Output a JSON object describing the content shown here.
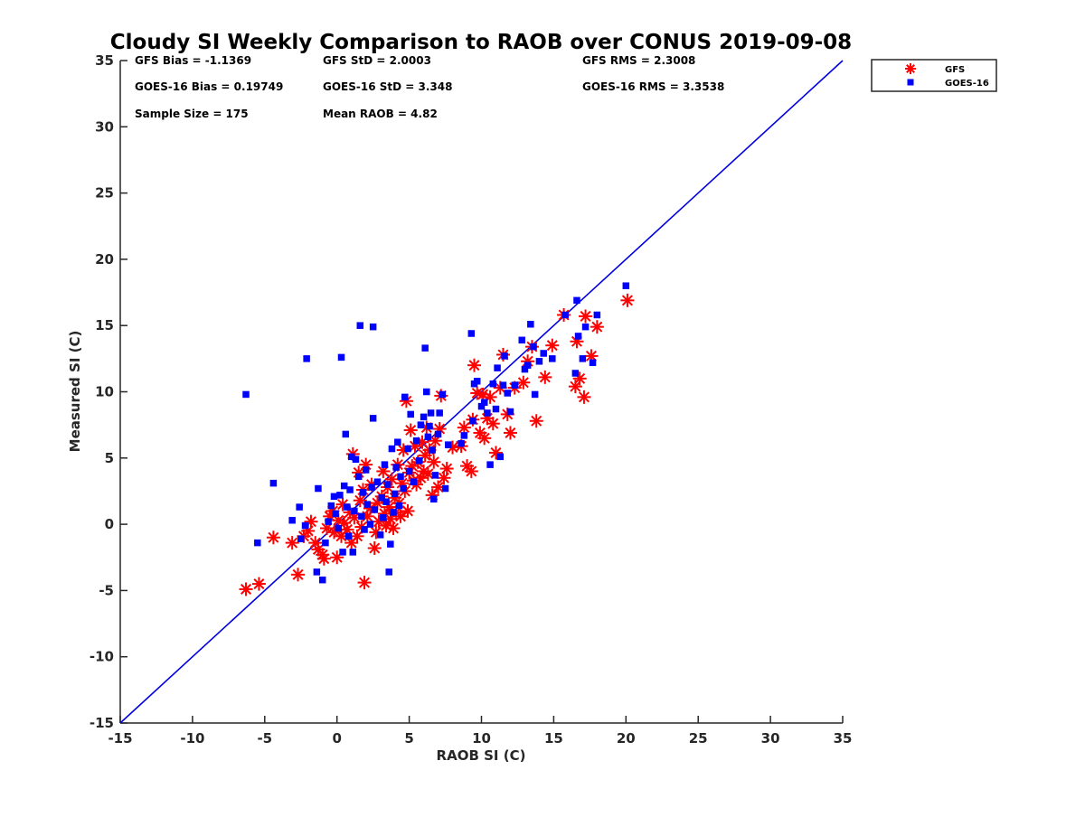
{
  "chart_data": {
    "type": "scatter",
    "title": "Cloudy SI Weekly Comparison to RAOB over CONUS 2019-09-08",
    "xlabel": "RAOB SI (C)",
    "ylabel": "Measured SI (C)",
    "xlim": [
      -15,
      35
    ],
    "ylim": [
      -15,
      35
    ],
    "x_ticks": [
      "-15",
      "-10",
      "-5",
      "0",
      "5",
      "10",
      "15",
      "20",
      "25",
      "30",
      "35"
    ],
    "y_ticks": [
      "-15",
      "-10",
      "-5",
      "0",
      "5",
      "10",
      "15",
      "20",
      "25",
      "30",
      "35"
    ],
    "grid": false,
    "legend_position": "top-right, outside axes",
    "reference_line": {
      "x": [
        -15,
        35
      ],
      "y": [
        -15,
        35
      ],
      "color": "#0000e0"
    },
    "stats": [
      {
        "key": "gfs_bias",
        "text": "GFS Bias = -1.1369"
      },
      {
        "key": "gfs_std",
        "text": "GFS StD = 2.0003"
      },
      {
        "key": "gfs_rms",
        "text": "GFS RMS = 2.3008"
      },
      {
        "key": "goes_bias",
        "text": "GOES-16 Bias = 0.19749"
      },
      {
        "key": "goes_std",
        "text": "GOES-16 StD = 3.348"
      },
      {
        "key": "goes_rms",
        "text": "GOES-16 RMS = 3.3538"
      },
      {
        "key": "sample_size",
        "text": "Sample Size = 175"
      },
      {
        "key": "mean_raob",
        "text": "Mean RAOB = 4.82"
      }
    ],
    "series": [
      {
        "name": "GFS",
        "marker": "asterisk",
        "color": "#ff0000",
        "points": [
          [
            -6.3,
            -4.9
          ],
          [
            -5.4,
            -4.5
          ],
          [
            -4.4,
            -1.0
          ],
          [
            -3.1,
            -1.4
          ],
          [
            -2.7,
            -3.8
          ],
          [
            -2.3,
            -0.9
          ],
          [
            -2.0,
            -0.5
          ],
          [
            -1.8,
            0.2
          ],
          [
            -1.5,
            -1.4
          ],
          [
            -1.3,
            -1.9
          ],
          [
            -1.0,
            -2.3
          ],
          [
            -0.9,
            -2.6
          ],
          [
            -0.7,
            -0.3
          ],
          [
            -0.5,
            0.6
          ],
          [
            -0.3,
            1.0
          ],
          [
            -0.2,
            -0.6
          ],
          [
            0.0,
            -2.5
          ],
          [
            0.1,
            0.3
          ],
          [
            0.3,
            -0.9
          ],
          [
            0.4,
            1.5
          ],
          [
            0.5,
            0.1
          ],
          [
            0.7,
            -0.4
          ],
          [
            0.9,
            0.9
          ],
          [
            1.0,
            -1.4
          ],
          [
            1.1,
            5.3
          ],
          [
            1.2,
            0.5
          ],
          [
            1.4,
            -0.9
          ],
          [
            1.5,
            3.9
          ],
          [
            1.6,
            1.8
          ],
          [
            1.7,
            -0.2
          ],
          [
            1.8,
            2.6
          ],
          [
            1.9,
            -4.4
          ],
          [
            2.0,
            4.5
          ],
          [
            2.1,
            0.6
          ],
          [
            2.3,
            1.2
          ],
          [
            2.4,
            3.0
          ],
          [
            2.6,
            -1.8
          ],
          [
            2.7,
            -0.6
          ],
          [
            2.8,
            1.6
          ],
          [
            2.9,
            0.2
          ],
          [
            3.1,
            2.1
          ],
          [
            3.2,
            4.0
          ],
          [
            3.3,
            0.8
          ],
          [
            3.4,
            -0.1
          ],
          [
            3.5,
            2.8
          ],
          [
            3.6,
            1.3
          ],
          [
            3.7,
            0.4
          ],
          [
            3.8,
            3.4
          ],
          [
            3.9,
            -0.3
          ],
          [
            4.0,
            2.0
          ],
          [
            4.1,
            0.9
          ],
          [
            4.2,
            4.5
          ],
          [
            4.3,
            1.6
          ],
          [
            4.4,
            0.6
          ],
          [
            4.5,
            3.1
          ],
          [
            4.6,
            5.6
          ],
          [
            4.7,
            2.5
          ],
          [
            4.8,
            9.3
          ],
          [
            4.9,
            1.0
          ],
          [
            5.0,
            3.9
          ],
          [
            5.1,
            7.1
          ],
          [
            5.2,
            4.4
          ],
          [
            5.3,
            3.3
          ],
          [
            5.4,
            5.9
          ],
          [
            5.5,
            3.0
          ],
          [
            5.6,
            4.7
          ],
          [
            5.8,
            3.5
          ],
          [
            5.9,
            6.2
          ],
          [
            6.0,
            4.0
          ],
          [
            6.1,
            5.2
          ],
          [
            6.2,
            7.3
          ],
          [
            6.3,
            3.8
          ],
          [
            6.4,
            5.6
          ],
          [
            6.6,
            2.2
          ],
          [
            6.7,
            4.7
          ],
          [
            6.8,
            6.3
          ],
          [
            7.0,
            2.8
          ],
          [
            7.1,
            7.2
          ],
          [
            7.2,
            9.7
          ],
          [
            7.4,
            3.5
          ],
          [
            7.6,
            4.2
          ],
          [
            8.0,
            5.8
          ],
          [
            8.6,
            5.9
          ],
          [
            8.8,
            7.3
          ],
          [
            9.0,
            4.4
          ],
          [
            9.3,
            4.0
          ],
          [
            9.4,
            7.9
          ],
          [
            9.5,
            12.0
          ],
          [
            9.7,
            9.9
          ],
          [
            9.9,
            6.9
          ],
          [
            10.1,
            9.8
          ],
          [
            10.2,
            6.5
          ],
          [
            10.4,
            8.0
          ],
          [
            10.6,
            9.6
          ],
          [
            10.8,
            7.6
          ],
          [
            11.0,
            5.4
          ],
          [
            11.3,
            10.3
          ],
          [
            11.5,
            12.8
          ],
          [
            11.8,
            8.3
          ],
          [
            12.0,
            6.9
          ],
          [
            12.3,
            10.3
          ],
          [
            12.9,
            10.7
          ],
          [
            13.2,
            12.3
          ],
          [
            13.5,
            13.4
          ],
          [
            13.8,
            7.8
          ],
          [
            14.4,
            11.1
          ],
          [
            14.9,
            13.5
          ],
          [
            15.7,
            15.8
          ],
          [
            16.5,
            10.4
          ],
          [
            16.6,
            13.8
          ],
          [
            16.8,
            11.0
          ],
          [
            17.1,
            9.6
          ],
          [
            17.2,
            15.7
          ],
          [
            17.6,
            12.7
          ],
          [
            18.0,
            14.9
          ],
          [
            20.1,
            16.9
          ]
        ]
      },
      {
        "name": "GOES-16",
        "marker": "square",
        "color": "#0000ff",
        "points": [
          [
            -6.3,
            9.8
          ],
          [
            -5.5,
            -1.4
          ],
          [
            -4.4,
            3.1
          ],
          [
            -3.1,
            0.3
          ],
          [
            -2.6,
            1.3
          ],
          [
            -2.5,
            -1.1
          ],
          [
            -2.2,
            -0.1
          ],
          [
            -2.1,
            12.5
          ],
          [
            -1.4,
            -3.6
          ],
          [
            -1.3,
            2.7
          ],
          [
            -1.0,
            -4.2
          ],
          [
            -0.8,
            -1.4
          ],
          [
            -0.6,
            0.2
          ],
          [
            -0.4,
            1.4
          ],
          [
            -0.2,
            2.1
          ],
          [
            -0.1,
            0.8
          ],
          [
            0.1,
            -0.3
          ],
          [
            0.2,
            2.2
          ],
          [
            0.3,
            12.6
          ],
          [
            0.4,
            -2.1
          ],
          [
            0.5,
            2.9
          ],
          [
            0.6,
            6.8
          ],
          [
            0.7,
            1.3
          ],
          [
            0.8,
            -0.9
          ],
          [
            0.9,
            2.6
          ],
          [
            1.0,
            5.1
          ],
          [
            1.1,
            -2.1
          ],
          [
            1.2,
            1.0
          ],
          [
            1.3,
            4.9
          ],
          [
            1.5,
            3.6
          ],
          [
            1.6,
            15.0
          ],
          [
            1.7,
            0.6
          ],
          [
            1.8,
            2.4
          ],
          [
            1.9,
            -0.4
          ],
          [
            2.0,
            4.1
          ],
          [
            2.1,
            1.5
          ],
          [
            2.3,
            0.0
          ],
          [
            2.4,
            2.8
          ],
          [
            2.5,
            14.9
          ],
          [
            2.5,
            8.0
          ],
          [
            2.6,
            1.1
          ],
          [
            2.8,
            3.2
          ],
          [
            3.0,
            -0.8
          ],
          [
            3.1,
            2.0
          ],
          [
            3.2,
            0.5
          ],
          [
            3.3,
            4.5
          ],
          [
            3.4,
            1.7
          ],
          [
            3.5,
            3.0
          ],
          [
            3.6,
            -3.6
          ],
          [
            3.7,
            -1.5
          ],
          [
            3.8,
            5.7
          ],
          [
            3.9,
            0.9
          ],
          [
            4.0,
            2.3
          ],
          [
            4.1,
            4.3
          ],
          [
            4.2,
            6.2
          ],
          [
            4.3,
            1.4
          ],
          [
            4.4,
            3.6
          ],
          [
            4.6,
            2.7
          ],
          [
            4.7,
            9.6
          ],
          [
            4.9,
            5.7
          ],
          [
            5.0,
            4.0
          ],
          [
            5.1,
            8.3
          ],
          [
            5.3,
            3.2
          ],
          [
            5.5,
            6.3
          ],
          [
            5.7,
            4.8
          ],
          [
            5.8,
            7.5
          ],
          [
            6.0,
            8.1
          ],
          [
            6.1,
            13.3
          ],
          [
            6.2,
            10.0
          ],
          [
            6.3,
            6.6
          ],
          [
            6.4,
            7.4
          ],
          [
            6.5,
            8.4
          ],
          [
            6.6,
            5.6
          ],
          [
            6.7,
            1.9
          ],
          [
            6.8,
            3.7
          ],
          [
            7.0,
            6.8
          ],
          [
            7.1,
            8.4
          ],
          [
            7.3,
            9.8
          ],
          [
            7.5,
            2.7
          ],
          [
            7.7,
            6.0
          ],
          [
            8.6,
            6.1
          ],
          [
            8.8,
            6.7
          ],
          [
            9.3,
            14.4
          ],
          [
            9.4,
            7.8
          ],
          [
            9.5,
            10.6
          ],
          [
            9.7,
            10.8
          ],
          [
            10.0,
            8.9
          ],
          [
            10.2,
            9.2
          ],
          [
            10.4,
            8.4
          ],
          [
            10.6,
            4.5
          ],
          [
            10.8,
            10.6
          ],
          [
            11.0,
            8.7
          ],
          [
            11.1,
            11.8
          ],
          [
            11.3,
            5.1
          ],
          [
            11.5,
            10.5
          ],
          [
            11.6,
            12.7
          ],
          [
            11.8,
            9.9
          ],
          [
            12.0,
            8.5
          ],
          [
            12.3,
            10.5
          ],
          [
            12.8,
            13.9
          ],
          [
            13.0,
            11.7
          ],
          [
            13.2,
            12.0
          ],
          [
            13.4,
            15.1
          ],
          [
            13.6,
            13.4
          ],
          [
            13.7,
            9.8
          ],
          [
            14.0,
            12.3
          ],
          [
            14.3,
            12.9
          ],
          [
            14.9,
            12.5
          ],
          [
            15.8,
            15.8
          ],
          [
            16.5,
            11.4
          ],
          [
            16.6,
            16.9
          ],
          [
            16.7,
            14.2
          ],
          [
            17.0,
            12.5
          ],
          [
            17.2,
            14.9
          ],
          [
            17.7,
            12.2
          ],
          [
            18.0,
            15.8
          ],
          [
            20.0,
            18.0
          ]
        ]
      }
    ]
  }
}
